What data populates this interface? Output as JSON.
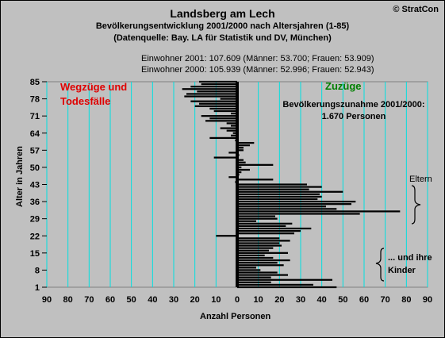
{
  "title": "Landsberg am Lech",
  "subtitle_1": "Bevölkerungsentwicklung 2001/2000  nach Altersjahren (1-85)",
  "subtitle_2": "(Datenquelle: Bay. LA für Statistik und DV, München)",
  "copyright": "© StratCon",
  "info_2001": "Einwohner 2001: 107.609  (Männer: 53.700; Frauen: 53.909)",
  "info_2000": "Einwohner 2000: 105.939  (Männer: 52.996; Frauen: 52.943)",
  "colors": {
    "background": "#c0c0c0",
    "grid": "#00e0e0",
    "bars": "#000000",
    "left_label": "#e00000",
    "right_label": "#008000"
  },
  "chart_data": {
    "type": "bar",
    "orientation": "horizontal",
    "xlabel": "Anzahl Personen",
    "ylabel": "Alter in Jahren",
    "xlim": [
      -90,
      90
    ],
    "ylim": [
      1,
      85
    ],
    "x_ticks": [
      "90",
      "80",
      "70",
      "60",
      "50",
      "40",
      "30",
      "20",
      "10",
      "0",
      "10",
      "20",
      "30",
      "40",
      "50",
      "60",
      "70",
      "80",
      "90"
    ],
    "y_ticks": [
      "1",
      "8",
      "15",
      "22",
      "29",
      "36",
      "43",
      "50",
      "57",
      "64",
      "71",
      "78",
      "85"
    ],
    "grid": true,
    "ages": [
      1,
      2,
      3,
      4,
      5,
      6,
      7,
      8,
      9,
      10,
      11,
      12,
      13,
      14,
      15,
      16,
      17,
      18,
      19,
      20,
      21,
      22,
      23,
      24,
      25,
      26,
      27,
      28,
      29,
      30,
      31,
      32,
      33,
      34,
      35,
      36,
      37,
      38,
      39,
      40,
      41,
      42,
      43,
      44,
      45,
      46,
      47,
      48,
      49,
      50,
      51,
      52,
      53,
      54,
      55,
      56,
      57,
      58,
      59,
      60,
      61,
      62,
      63,
      64,
      65,
      66,
      67,
      68,
      69,
      70,
      71,
      72,
      73,
      74,
      75,
      76,
      77,
      78,
      79,
      80,
      81,
      82,
      83,
      84,
      85
    ],
    "values": [
      47,
      36,
      16,
      45,
      16,
      24,
      19,
      11,
      9,
      22,
      19,
      25,
      17,
      13,
      24,
      15,
      17,
      21,
      20,
      25,
      20,
      -10,
      27,
      30,
      35,
      23,
      26,
      9,
      19,
      18,
      58,
      77,
      47,
      42,
      54,
      56,
      38,
      40,
      39,
      50,
      34,
      40,
      33,
      -1,
      17,
      -4,
      1,
      2,
      6,
      2,
      17,
      4,
      3,
      -11,
      1,
      -4,
      3,
      3,
      6,
      8,
      -1,
      -13,
      -3,
      -2,
      -5,
      -8,
      -3,
      -5,
      -15,
      -13,
      -17,
      -3,
      -11,
      -13,
      -20,
      -18,
      -22,
      -8,
      -25,
      -24,
      -19,
      -26,
      -22,
      -17,
      -18
    ],
    "annotations": {
      "left": [
        "Wegzüge und",
        "Todesfälle"
      ],
      "right": "Zuzüge",
      "summary": [
        "Bevölkerungszunahme 2001/2000:",
        "1.670 Personen"
      ],
      "eltern": "Eltern",
      "kinder": [
        "... und ihre",
        "Kinder"
      ]
    }
  }
}
